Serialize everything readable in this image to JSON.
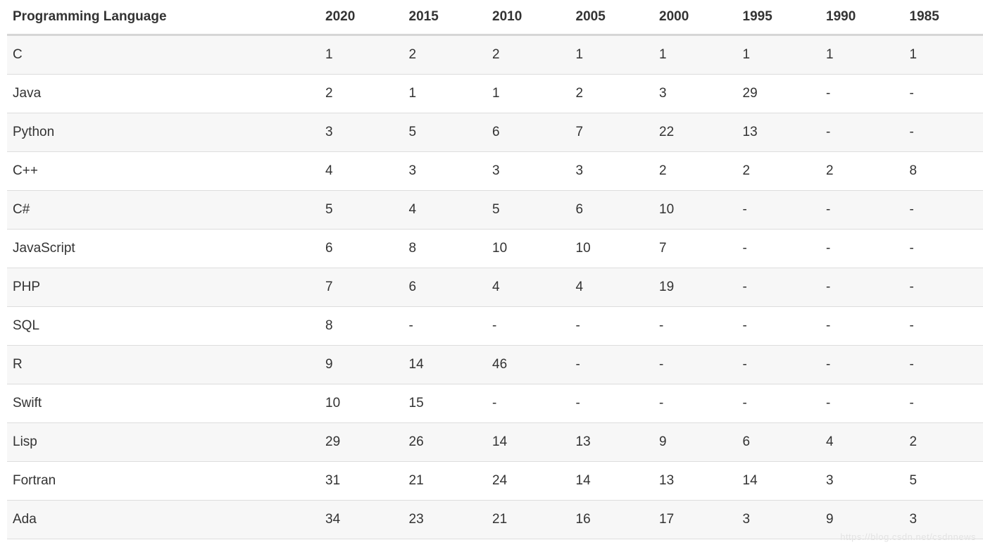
{
  "chart_data": {
    "type": "table",
    "columns": [
      "Programming Language",
      "2020",
      "2015",
      "2010",
      "2005",
      "2000",
      "1995",
      "1990",
      "1985"
    ],
    "rows": [
      {
        "language": "C",
        "ranks": [
          "1",
          "2",
          "2",
          "1",
          "1",
          "1",
          "1",
          "1"
        ]
      },
      {
        "language": "Java",
        "ranks": [
          "2",
          "1",
          "1",
          "2",
          "3",
          "29",
          "-",
          "-"
        ]
      },
      {
        "language": "Python",
        "ranks": [
          "3",
          "5",
          "6",
          "7",
          "22",
          "13",
          "-",
          "-"
        ]
      },
      {
        "language": "C++",
        "ranks": [
          "4",
          "3",
          "3",
          "3",
          "2",
          "2",
          "2",
          "8"
        ]
      },
      {
        "language": "C#",
        "ranks": [
          "5",
          "4",
          "5",
          "6",
          "10",
          "-",
          "-",
          "-"
        ]
      },
      {
        "language": "JavaScript",
        "ranks": [
          "6",
          "8",
          "10",
          "10",
          "7",
          "-",
          "-",
          "-"
        ]
      },
      {
        "language": "PHP",
        "ranks": [
          "7",
          "6",
          "4",
          "4",
          "19",
          "-",
          "-",
          "-"
        ]
      },
      {
        "language": "SQL",
        "ranks": [
          "8",
          "-",
          "-",
          "-",
          "-",
          "-",
          "-",
          "-"
        ]
      },
      {
        "language": "R",
        "ranks": [
          "9",
          "14",
          "46",
          "-",
          "-",
          "-",
          "-",
          "-"
        ]
      },
      {
        "language": "Swift",
        "ranks": [
          "10",
          "15",
          "-",
          "-",
          "-",
          "-",
          "-",
          "-"
        ]
      },
      {
        "language": "Lisp",
        "ranks": [
          "29",
          "26",
          "14",
          "13",
          "9",
          "6",
          "4",
          "2"
        ]
      },
      {
        "language": "Fortran",
        "ranks": [
          "31",
          "21",
          "24",
          "14",
          "13",
          "14",
          "3",
          "5"
        ]
      },
      {
        "language": "Ada",
        "ranks": [
          "34",
          "23",
          "21",
          "16",
          "17",
          "3",
          "9",
          "3"
        ]
      }
    ]
  },
  "watermark": {
    "text": "https://blog.csdn.net/csdnnews"
  },
  "colors": {
    "stripe": "#f7f7f7",
    "row_border": "#dddddd",
    "header_border": "#d6d6d6",
    "text": "#333333",
    "watermark": "#e3e3e3"
  }
}
